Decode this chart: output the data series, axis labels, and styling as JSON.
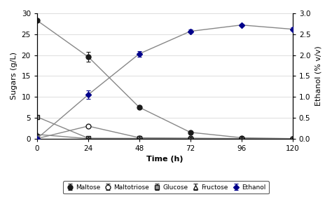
{
  "time": [
    0,
    24,
    48,
    72,
    96,
    120
  ],
  "maltose_y": [
    28.3,
    19.6,
    7.5,
    1.5,
    0.2,
    0.0
  ],
  "maltose_yerr": [
    0.3,
    1.2,
    0.4,
    0.2,
    0.1,
    0.0
  ],
  "maltotriose_y": [
    0.0,
    3.0,
    0.2,
    0.1,
    0.0,
    0.0
  ],
  "maltotriose_yerr": [
    0.0,
    0.2,
    0.05,
    0.05,
    0.0,
    0.0
  ],
  "glucose_y": [
    5.2,
    0.1,
    0.05,
    0.0,
    0.0,
    0.0
  ],
  "glucose_yerr": [
    0.2,
    0.05,
    0.02,
    0.0,
    0.0,
    0.0
  ],
  "fructose_y": [
    1.0,
    0.0,
    0.0,
    0.0,
    0.0,
    0.0
  ],
  "fructose_yerr": [
    0.1,
    0.0,
    0.0,
    0.0,
    0.0,
    0.0
  ],
  "ethanol_y": [
    0.0,
    1.05,
    2.03,
    2.57,
    2.72,
    2.62
  ],
  "ethanol_yerr": [
    0.0,
    0.1,
    0.07,
    0.04,
    0.03,
    0.04
  ],
  "left_ylim": [
    0,
    30
  ],
  "right_ylim": [
    0,
    3.0
  ],
  "xlim": [
    0,
    120
  ],
  "left_yticks": [
    0,
    5,
    10,
    15,
    20,
    25,
    30
  ],
  "right_yticks": [
    0.0,
    0.5,
    1.0,
    1.5,
    2.0,
    2.5,
    3.0
  ],
  "xticks": [
    0,
    24,
    48,
    72,
    96,
    120
  ],
  "xlabel": "Time (h)",
  "ylabel_left": "Sugars (g/L)",
  "ylabel_right": "Ethanol (% v/v)",
  "line_color": "#888888",
  "maltose_color": "#1a1a1a",
  "maltotriose_color": "#1a1a1a",
  "glucose_color": "#1a1a1a",
  "fructose_color": "#1a1a1a",
  "ethanol_color": "#00008B",
  "legend_labels": [
    "Maltose",
    "Maltotriose",
    "Glucose",
    "Fructose",
    "Ethanol"
  ],
  "background_color": "#ffffff",
  "grid_color": "#d0d0d0"
}
